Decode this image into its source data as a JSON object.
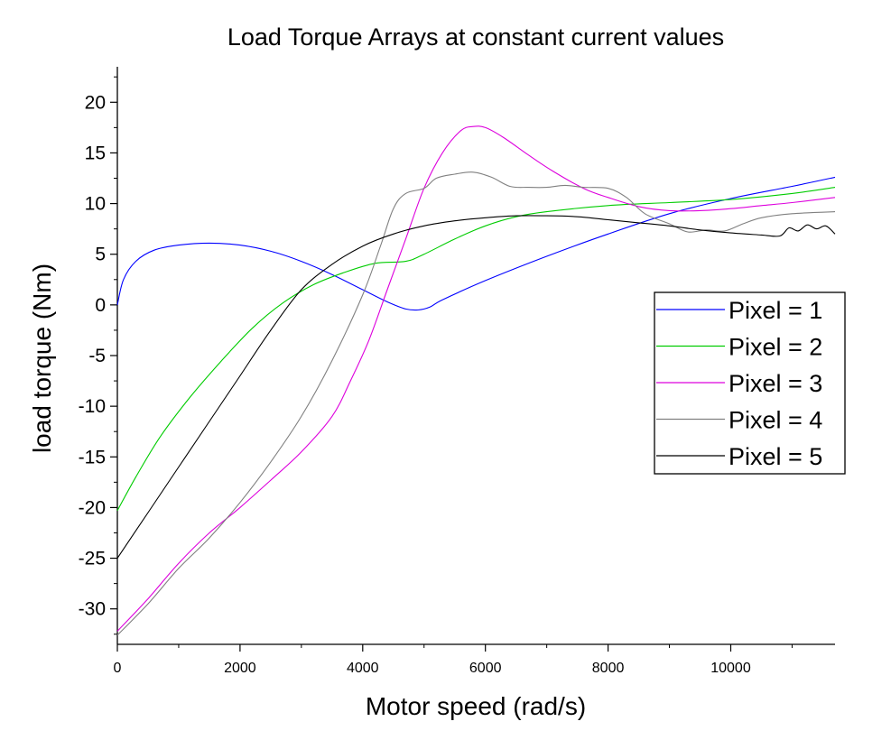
{
  "chart_data": {
    "type": "line",
    "title": "Load Torque Arrays at constant current values",
    "xlabel": "Motor speed (rad/s)",
    "ylabel": "load torque (Nm)",
    "xlim": [
      0,
      11700
    ],
    "ylim": [
      -33.5,
      23.5
    ],
    "x_ticks": [
      0,
      2000,
      4000,
      6000,
      8000,
      10000
    ],
    "x_tick_labels": [
      "0",
      "2000",
      "4000",
      "6000",
      "8000",
      "10000"
    ],
    "y_ticks": [
      20,
      15,
      10,
      5,
      0,
      -5,
      -10,
      -15,
      -20,
      -25,
      -30
    ],
    "y_tick_labels": [
      "20",
      "15",
      "10",
      "5",
      "0",
      "-5",
      "-10",
      "-15",
      "-20",
      "-25",
      "-30"
    ],
    "grid": false,
    "legend_position": "right",
    "series": [
      {
        "name": "Pixel = 1",
        "color": "#0000ff",
        "points": [
          [
            0,
            0
          ],
          [
            100,
            2.5
          ],
          [
            300,
            4.3
          ],
          [
            600,
            5.4
          ],
          [
            1000,
            5.9
          ],
          [
            1500,
            6.1
          ],
          [
            2000,
            5.9
          ],
          [
            2500,
            5.3
          ],
          [
            3000,
            4.3
          ],
          [
            3500,
            3.0
          ],
          [
            4000,
            1.5
          ],
          [
            4400,
            0.3
          ],
          [
            4700,
            -0.4
          ],
          [
            4900,
            -0.5
          ],
          [
            5100,
            -0.2
          ],
          [
            5300,
            0.5
          ],
          [
            6000,
            2.4
          ],
          [
            7000,
            4.8
          ],
          [
            8000,
            7.0
          ],
          [
            9000,
            9.0
          ],
          [
            10000,
            10.5
          ],
          [
            11000,
            11.7
          ],
          [
            11700,
            12.6
          ]
        ]
      },
      {
        "name": "Pixel = 2",
        "color": "#00cc00",
        "points": [
          [
            0,
            -20.3
          ],
          [
            300,
            -17
          ],
          [
            700,
            -13
          ],
          [
            1200,
            -9
          ],
          [
            1700,
            -5.5
          ],
          [
            2200,
            -2.3
          ],
          [
            2700,
            0.2
          ],
          [
            3200,
            2.0
          ],
          [
            3700,
            3.2
          ],
          [
            4200,
            4.1
          ],
          [
            4700,
            4.3
          ],
          [
            5000,
            5.0
          ],
          [
            5500,
            6.5
          ],
          [
            6000,
            7.8
          ],
          [
            6500,
            8.7
          ],
          [
            7000,
            9.2
          ],
          [
            8000,
            9.8
          ],
          [
            9000,
            10.1
          ],
          [
            10000,
            10.4
          ],
          [
            11000,
            11.0
          ],
          [
            11700,
            11.6
          ]
        ]
      },
      {
        "name": "Pixel = 3",
        "color": "#dd00dd",
        "points": [
          [
            0,
            -32.2
          ],
          [
            500,
            -29
          ],
          [
            1000,
            -25.5
          ],
          [
            1500,
            -22.5
          ],
          [
            2000,
            -20
          ],
          [
            2500,
            -17.3
          ],
          [
            3000,
            -14.5
          ],
          [
            3500,
            -11
          ],
          [
            3800,
            -7.5
          ],
          [
            4100,
            -3.5
          ],
          [
            4400,
            1.5
          ],
          [
            4700,
            6.5
          ],
          [
            5000,
            11.5
          ],
          [
            5300,
            15
          ],
          [
            5600,
            17.2
          ],
          [
            5800,
            17.6
          ],
          [
            6000,
            17.5
          ],
          [
            6300,
            16.5
          ],
          [
            6700,
            14.8
          ],
          [
            7100,
            13.2
          ],
          [
            7600,
            11.5
          ],
          [
            8000,
            10.6
          ],
          [
            8500,
            9.7
          ],
          [
            9000,
            9.3
          ],
          [
            9500,
            9.3
          ],
          [
            10000,
            9.5
          ],
          [
            10500,
            9.8
          ],
          [
            11000,
            10.1
          ],
          [
            11700,
            10.6
          ]
        ]
      },
      {
        "name": "Pixel = 4",
        "color": "#808080",
        "points": [
          [
            0,
            -32.6
          ],
          [
            500,
            -29.5
          ],
          [
            1000,
            -26
          ],
          [
            1500,
            -23
          ],
          [
            2000,
            -19.5
          ],
          [
            2500,
            -15.5
          ],
          [
            3000,
            -11
          ],
          [
            3500,
            -5.5
          ],
          [
            4000,
            1
          ],
          [
            4300,
            6
          ],
          [
            4500,
            9.5
          ],
          [
            4700,
            11
          ],
          [
            5000,
            11.5
          ],
          [
            5200,
            12.5
          ],
          [
            5500,
            12.9
          ],
          [
            5800,
            13.1
          ],
          [
            6100,
            12.6
          ],
          [
            6400,
            11.7
          ],
          [
            6700,
            11.6
          ],
          [
            7000,
            11.6
          ],
          [
            7300,
            11.8
          ],
          [
            7600,
            11.6
          ],
          [
            8000,
            11.5
          ],
          [
            8300,
            10.6
          ],
          [
            8600,
            9.0
          ],
          [
            9000,
            8.0
          ],
          [
            9300,
            7.2
          ],
          [
            9600,
            7.4
          ],
          [
            9900,
            7.3
          ],
          [
            10200,
            8.0
          ],
          [
            10500,
            8.6
          ],
          [
            11000,
            9.0
          ],
          [
            11700,
            9.2
          ]
        ]
      },
      {
        "name": "Pixel = 5",
        "color": "#000000",
        "points": [
          [
            0,
            -25
          ],
          [
            500,
            -20.5
          ],
          [
            1000,
            -16
          ],
          [
            1500,
            -11.5
          ],
          [
            2000,
            -7
          ],
          [
            2500,
            -2.5
          ],
          [
            3000,
            1.5
          ],
          [
            3500,
            4.0
          ],
          [
            4000,
            5.8
          ],
          [
            4500,
            7.0
          ],
          [
            5000,
            7.8
          ],
          [
            5500,
            8.3
          ],
          [
            6000,
            8.6
          ],
          [
            6500,
            8.8
          ],
          [
            7000,
            8.8
          ],
          [
            7500,
            8.7
          ],
          [
            8000,
            8.4
          ],
          [
            8500,
            8.1
          ],
          [
            9000,
            7.8
          ],
          [
            9500,
            7.4
          ],
          [
            10000,
            7.1
          ],
          [
            10500,
            6.9
          ],
          [
            10800,
            6.8
          ],
          [
            10950,
            7.6
          ],
          [
            11100,
            7.3
          ],
          [
            11250,
            7.9
          ],
          [
            11400,
            7.5
          ],
          [
            11550,
            7.8
          ],
          [
            11700,
            7.0
          ]
        ]
      }
    ]
  }
}
